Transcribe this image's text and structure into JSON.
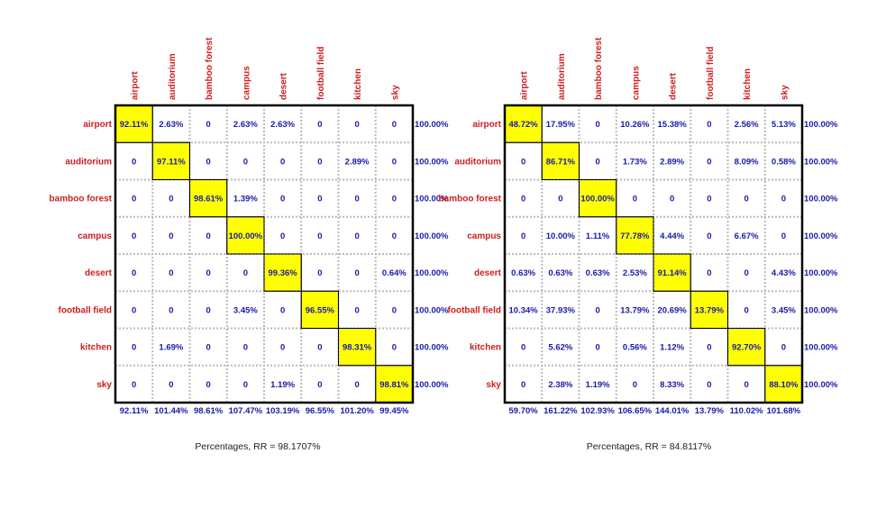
{
  "colors": {
    "label": "#cc1f1f",
    "value": "#1a1aaa",
    "diagonal_fill": "#ffff00",
    "grid": "#bbbbbb",
    "border": "#000000"
  },
  "chart_data": [
    {
      "type": "heatmap",
      "title": "Percentages, RR = 98.1707%",
      "row_labels": [
        "airport",
        "auditorium",
        "bamboo forest",
        "campus",
        "desert",
        "football field",
        "kitchen",
        "sky"
      ],
      "col_labels": [
        "airport",
        "auditorium",
        "bamboo forest",
        "campus",
        "desert",
        "football field",
        "kitchen",
        "sky"
      ],
      "cells": [
        [
          "92.11%",
          "2.63%",
          "0",
          "2.63%",
          "2.63%",
          "0",
          "0",
          "0"
        ],
        [
          "0",
          "97.11%",
          "0",
          "0",
          "0",
          "0",
          "2.89%",
          "0"
        ],
        [
          "0",
          "0",
          "98.61%",
          "1.39%",
          "0",
          "0",
          "0",
          "0"
        ],
        [
          "0",
          "0",
          "0",
          "100.00%",
          "0",
          "0",
          "0",
          "0"
        ],
        [
          "0",
          "0",
          "0",
          "0",
          "99.36%",
          "0",
          "0",
          "0.64%"
        ],
        [
          "0",
          "0",
          "0",
          "3.45%",
          "0",
          "96.55%",
          "0",
          "0"
        ],
        [
          "0",
          "1.69%",
          "0",
          "0",
          "0",
          "0",
          "98.31%",
          "0"
        ],
        [
          "0",
          "0",
          "0",
          "0",
          "1.19%",
          "0",
          "0",
          "98.81%"
        ]
      ],
      "row_totals": [
        "100.00%",
        "100.00%",
        "100.00%",
        "100.00%",
        "100.00%",
        "100.00%",
        "100.00%",
        "100.00%"
      ],
      "col_totals": [
        "92.11%",
        "101.44%",
        "98.61%",
        "107.47%",
        "103.19%",
        "96.55%",
        "101.20%",
        "99.45%"
      ]
    },
    {
      "type": "heatmap",
      "title": "Percentages, RR = 84.8117%",
      "row_labels": [
        "airport",
        "auditorium",
        "bamboo forest",
        "campus",
        "desert",
        "football field",
        "kitchen",
        "sky"
      ],
      "col_labels": [
        "airport",
        "auditorium",
        "bamboo forest",
        "campus",
        "desert",
        "football field",
        "kitchen",
        "sky"
      ],
      "cells": [
        [
          "48.72%",
          "17.95%",
          "0",
          "10.26%",
          "15.38%",
          "0",
          "2.56%",
          "5.13%"
        ],
        [
          "0",
          "86.71%",
          "0",
          "1.73%",
          "2.89%",
          "0",
          "8.09%",
          "0.58%"
        ],
        [
          "0",
          "0",
          "100.00%",
          "0",
          "0",
          "0",
          "0",
          "0"
        ],
        [
          "0",
          "10.00%",
          "1.11%",
          "77.78%",
          "4.44%",
          "0",
          "6.67%",
          "0"
        ],
        [
          "0.63%",
          "0.63%",
          "0.63%",
          "2.53%",
          "91.14%",
          "0",
          "0",
          "4.43%"
        ],
        [
          "10.34%",
          "37.93%",
          "0",
          "13.79%",
          "20.69%",
          "13.79%",
          "0",
          "3.45%"
        ],
        [
          "0",
          "5.62%",
          "0",
          "0.56%",
          "1.12%",
          "0",
          "92.70%",
          "0"
        ],
        [
          "0",
          "2.38%",
          "1.19%",
          "0",
          "8.33%",
          "0",
          "0",
          "88.10%"
        ]
      ],
      "row_totals": [
        "100.00%",
        "100.00%",
        "100.00%",
        "100.00%",
        "100.00%",
        "100.00%",
        "100.00%",
        "100.00%"
      ],
      "col_totals": [
        "59.70%",
        "161.22%",
        "102.93%",
        "106.65%",
        "144.01%",
        "13.79%",
        "110.02%",
        "101.68%"
      ]
    }
  ]
}
